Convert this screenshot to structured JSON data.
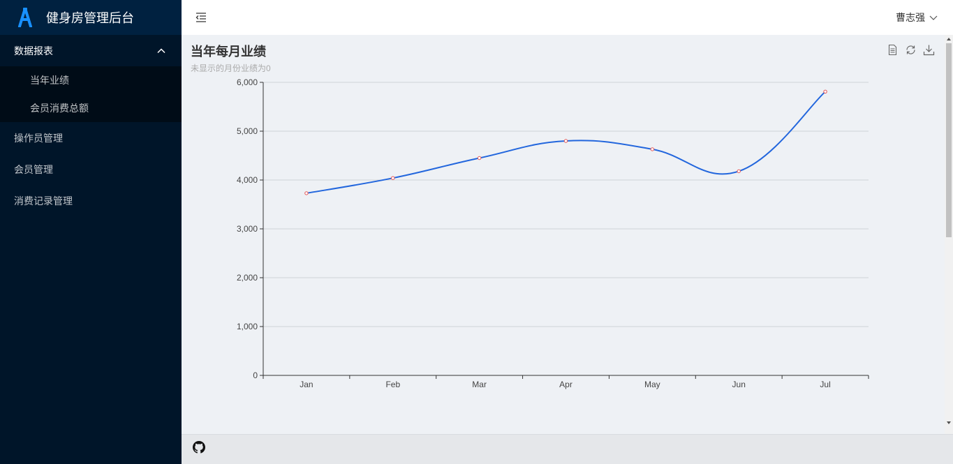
{
  "app": {
    "title": "健身房管理后台",
    "logo_icon": "acronym-a-logo-icon",
    "brand_color": "#1890ff"
  },
  "sidebar": {
    "group": {
      "label": "数据报表",
      "expanded": true,
      "items": [
        {
          "label": "当年业绩"
        },
        {
          "label": "会员消费总额"
        }
      ]
    },
    "items": [
      {
        "label": "操作员管理"
      },
      {
        "label": "会员管理"
      },
      {
        "label": "消费记录管理"
      }
    ]
  },
  "header": {
    "user_name": "曹志强"
  },
  "chart_data": {
    "type": "line",
    "title": "当年每月业绩",
    "subtitle": "未显示的月份业绩为0",
    "categories": [
      "Jan",
      "Feb",
      "Mar",
      "Apr",
      "May",
      "Jun",
      "Jul"
    ],
    "series": [
      {
        "values": [
          3730,
          4040,
          4450,
          4800,
          4630,
          4180,
          5810
        ]
      }
    ],
    "ylim": [
      0,
      6000
    ],
    "yticks": [
      0,
      1000,
      2000,
      3000,
      4000,
      5000,
      6000
    ],
    "ytick_labels": [
      "0",
      "1,000",
      "2,000",
      "3,000",
      "4,000",
      "5,000",
      "6,000"
    ],
    "smooth": true,
    "grid": true,
    "line_color": "#2266dd",
    "marker_color": "#e55555"
  }
}
